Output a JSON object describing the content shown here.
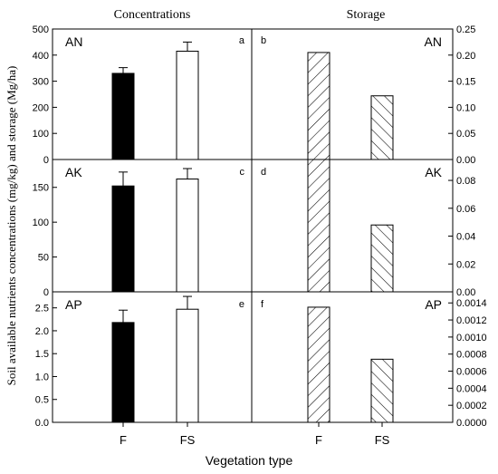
{
  "figure": {
    "col_titles": [
      "Concentrations",
      "Storage"
    ],
    "ylabel": "Soil available nutrients concentrations (mg/kg) and storage (Mg/ha)",
    "xlabel": "Vegetation type",
    "categories": [
      "F",
      "FS"
    ]
  },
  "chart_data": [
    {
      "type": "bar",
      "panel": "a",
      "nutrient": "AN",
      "column": "Concentrations",
      "categories": [
        "F",
        "FS"
      ],
      "values": [
        330,
        415
      ],
      "errors": [
        22,
        35
      ],
      "fills": [
        "solid black",
        "white"
      ],
      "ylim": [
        0,
        500
      ],
      "yticks": [
        "0",
        "100",
        "200",
        "300",
        "400",
        "500"
      ],
      "axis": "left"
    },
    {
      "type": "bar",
      "panel": "b",
      "nutrient": "AN",
      "column": "Storage",
      "categories": [
        "F",
        "FS"
      ],
      "values": [
        0.205,
        0.122
      ],
      "fills": [
        "hatch /",
        "hatch \\"
      ],
      "ylim": [
        0,
        0.25
      ],
      "yticks": [
        "0.00",
        "0.05",
        "0.10",
        "0.15",
        "0.20",
        "0.25"
      ],
      "axis": "right"
    },
    {
      "type": "bar",
      "panel": "c",
      "nutrient": "AK",
      "column": "Concentrations",
      "categories": [
        "F",
        "FS"
      ],
      "values": [
        152,
        162
      ],
      "errors": [
        20,
        15
      ],
      "fills": [
        "solid black",
        "white"
      ],
      "ylim": [
        0,
        190
      ],
      "yticks": [
        "0",
        "50",
        "100",
        "150"
      ],
      "axis": "left"
    },
    {
      "type": "bar",
      "panel": "d",
      "nutrient": "AK",
      "column": "Storage",
      "categories": [
        "F",
        "FS"
      ],
      "values": [
        0.095,
        0.048
      ],
      "fills": [
        "hatch /",
        "hatch \\"
      ],
      "ylim": [
        0,
        0.095
      ],
      "yticks": [
        "0.00",
        "0.02",
        "0.04",
        "0.06",
        "0.08"
      ],
      "axis": "right"
    },
    {
      "type": "bar",
      "panel": "e",
      "nutrient": "AP",
      "column": "Concentrations",
      "categories": [
        "F",
        "FS"
      ],
      "values": [
        2.18,
        2.47
      ],
      "errors": [
        0.27,
        0.28
      ],
      "fills": [
        "solid black",
        "white"
      ],
      "ylim": [
        0,
        2.85
      ],
      "yticks": [
        "0.0",
        "0.5",
        "1.0",
        "1.5",
        "2.0",
        "2.5"
      ],
      "axis": "left"
    },
    {
      "type": "bar",
      "panel": "f",
      "nutrient": "AP",
      "column": "Storage",
      "categories": [
        "F",
        "FS"
      ],
      "values": [
        0.00135,
        0.00074
      ],
      "fills": [
        "hatch /",
        "hatch \\"
      ],
      "ylim": [
        0,
        0.00153
      ],
      "yticks": [
        "0.0000",
        "0.0002",
        "0.0004",
        "0.0006",
        "0.0008",
        "0.0010",
        "0.0012",
        "0.0014"
      ],
      "axis": "right"
    }
  ]
}
